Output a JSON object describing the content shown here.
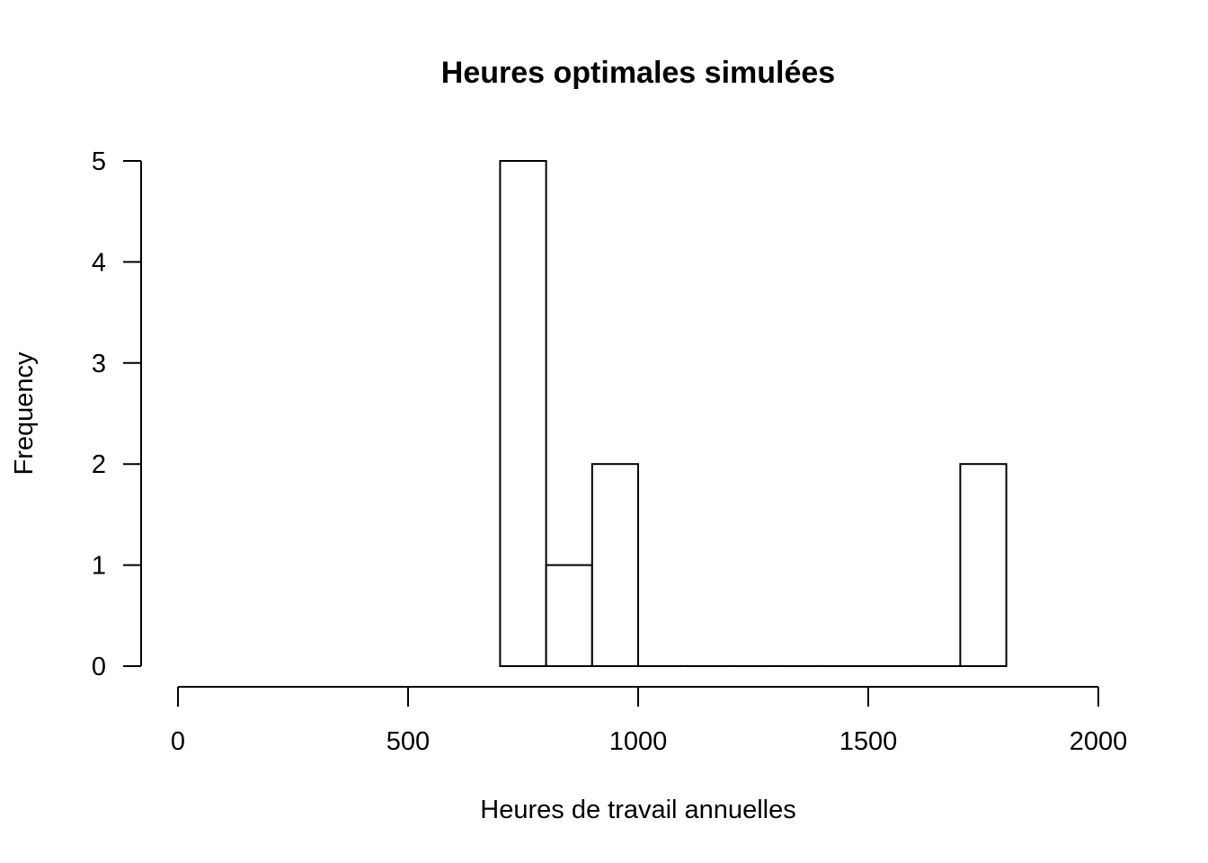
{
  "chart_data": {
    "type": "bar",
    "subtype": "histogram",
    "title": "Heures optimales simulées",
    "xlabel": "Heures de travail annuelles",
    "ylabel": "Frequency",
    "bins": [
      {
        "start": 700,
        "end": 800,
        "count": 5
      },
      {
        "start": 800,
        "end": 900,
        "count": 1
      },
      {
        "start": 900,
        "end": 1000,
        "count": 2
      },
      {
        "start": 1000,
        "end": 1100,
        "count": 0
      },
      {
        "start": 1100,
        "end": 1200,
        "count": 0
      },
      {
        "start": 1200,
        "end": 1300,
        "count": 0
      },
      {
        "start": 1300,
        "end": 1400,
        "count": 0
      },
      {
        "start": 1400,
        "end": 1500,
        "count": 0
      },
      {
        "start": 1500,
        "end": 1600,
        "count": 0
      },
      {
        "start": 1600,
        "end": 1700,
        "count": 0
      },
      {
        "start": 1700,
        "end": 1800,
        "count": 2
      }
    ],
    "xlim": [
      0,
      2000
    ],
    "ylim": [
      0,
      5
    ],
    "xticks": [
      0,
      500,
      1000,
      1500,
      2000
    ],
    "yticks": [
      0,
      1,
      2,
      3,
      4,
      5
    ],
    "grid": false,
    "fill_color": "#ffffff",
    "stroke_color": "#000000"
  }
}
